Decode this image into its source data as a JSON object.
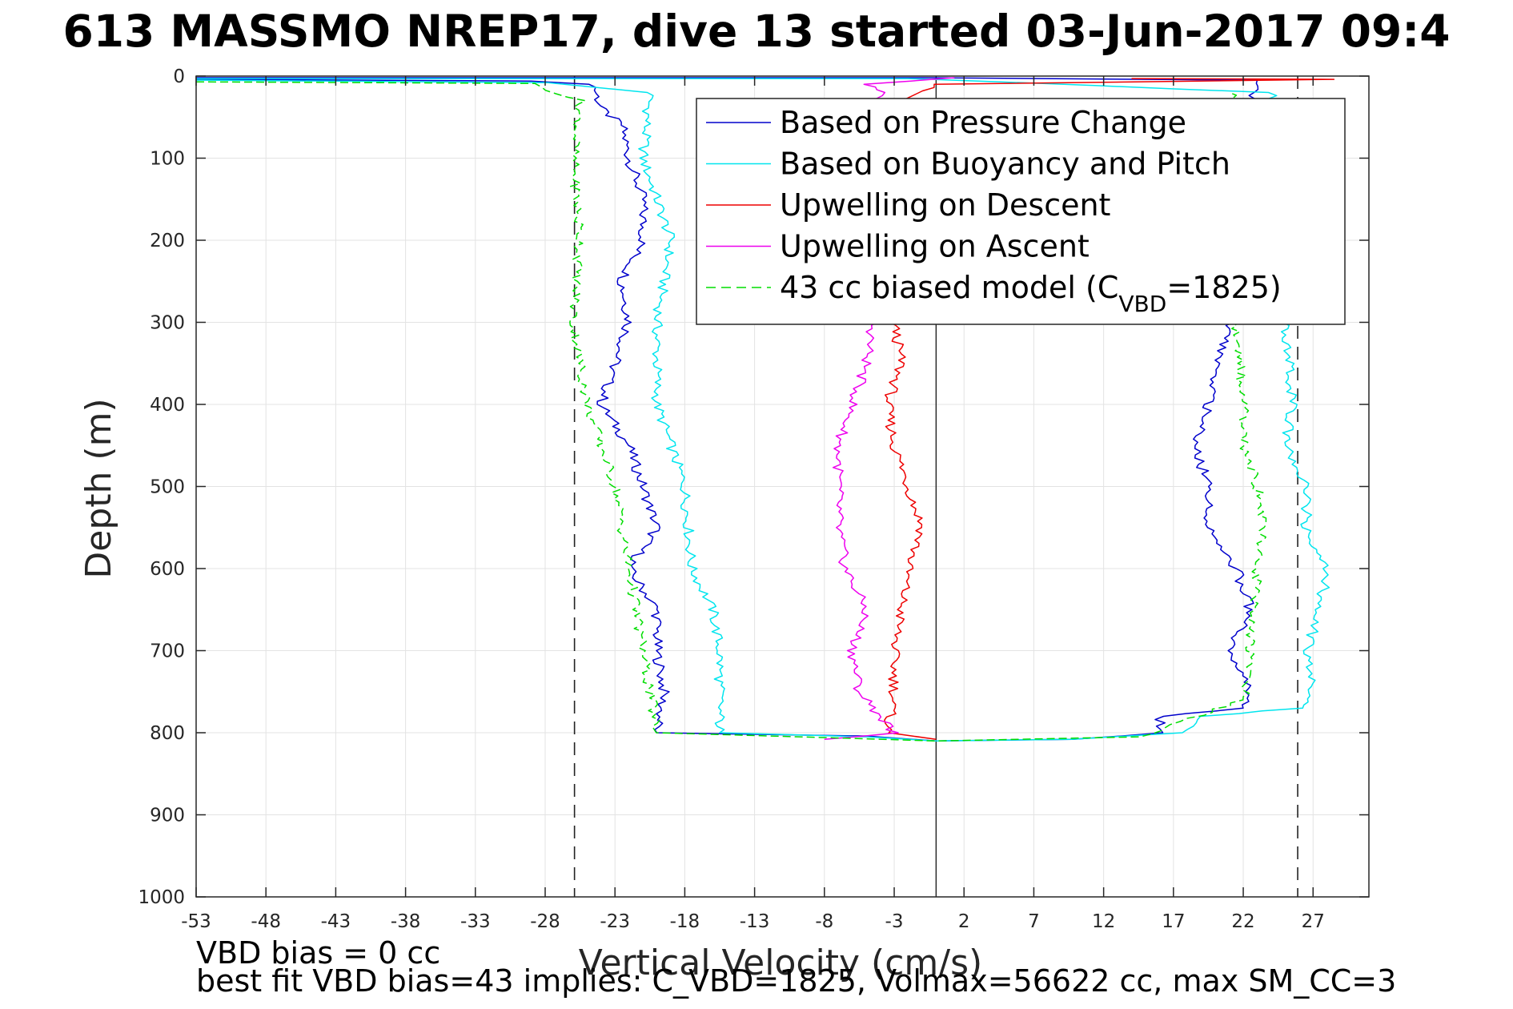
{
  "chart_data": {
    "type": "line",
    "title": "613 MASSMO NREP17, dive 13 started 03-Jun-2017 09:4",
    "xlabel": "Vertical Velocity (cm/s)",
    "ylabel": "Depth (m)",
    "xlim": [
      -53,
      31
    ],
    "ylim": [
      0,
      1000
    ],
    "y_reversed": true,
    "grid": true,
    "xticks": [
      "-53",
      "-48",
      "-43",
      "-38",
      "-33",
      "-28",
      "-23",
      "-18",
      "-13",
      "-8",
      "-3",
      "2",
      "7",
      "12",
      "17",
      "22",
      "27"
    ],
    "yticks": [
      "0",
      "100",
      "200",
      "300",
      "400",
      "500",
      "600",
      "700",
      "800",
      "900",
      "1000"
    ],
    "reference_lines": {
      "dashed_x": [
        -25.9,
        25.9
      ],
      "solid_x": [
        0
      ]
    },
    "legend": {
      "position": "top-right",
      "entries": [
        {
          "label": "Based on Pressure Change",
          "color": "#0000cc",
          "dash": false
        },
        {
          "label": "Based on Buoyancy and Pitch",
          "color": "#00e5ee",
          "dash": false
        },
        {
          "label": "Upwelling on Descent",
          "color": "#ee0000",
          "dash": false
        },
        {
          "label": "Upwelling on Ascent",
          "color": "#ee00ee",
          "dash": false
        },
        {
          "label": "43 cc biased model (C",
          "sub": "VBD",
          "label_end": "=1825)",
          "color": "#00dd00",
          "dash": true
        }
      ]
    },
    "series": [
      {
        "name": "Based on Pressure Change",
        "color": "#0000cc",
        "points": [
          [
            -53,
            4
          ],
          [
            -29,
            6
          ],
          [
            -24.5,
            10
          ],
          [
            -24,
            40
          ],
          [
            -22.5,
            60
          ],
          [
            -22,
            100
          ],
          [
            -21,
            150
          ],
          [
            -21,
            200
          ],
          [
            -22.5,
            250
          ],
          [
            -22,
            300
          ],
          [
            -23,
            350
          ],
          [
            -24,
            400
          ],
          [
            -22,
            450
          ],
          [
            -21,
            500
          ],
          [
            -20,
            550
          ],
          [
            -22,
            600
          ],
          [
            -20,
            650
          ],
          [
            -20,
            700
          ],
          [
            -19.5,
            750
          ],
          [
            -20,
            800
          ],
          [
            -5,
            804
          ],
          [
            0,
            810
          ],
          [
            10,
            808
          ],
          [
            16,
            800
          ],
          [
            16,
            780
          ],
          [
            22,
            770
          ],
          [
            22.5,
            750
          ],
          [
            21,
            700
          ],
          [
            22.5,
            650
          ],
          [
            21.5,
            600
          ],
          [
            19.5,
            550
          ],
          [
            19.5,
            500
          ],
          [
            18.5,
            450
          ],
          [
            19.5,
            400
          ],
          [
            20,
            350
          ],
          [
            21,
            300
          ],
          [
            21.5,
            200
          ],
          [
            22,
            50
          ],
          [
            23,
            5
          ],
          [
            -1,
            2
          ],
          [
            -53,
            2
          ]
        ]
      },
      {
        "name": "Based on Buoyancy and Pitch",
        "color": "#00e5ee",
        "points": [
          [
            -53,
            5
          ],
          [
            -28,
            8
          ],
          [
            -20.5,
            20
          ],
          [
            -21,
            100
          ],
          [
            -19,
            200
          ],
          [
            -20,
            300
          ],
          [
            -20,
            400
          ],
          [
            -19,
            450
          ],
          [
            -18,
            500
          ],
          [
            -17.5,
            600
          ],
          [
            -16,
            650
          ],
          [
            -15.5,
            700
          ],
          [
            -15.5,
            800
          ],
          [
            -5,
            805
          ],
          [
            0,
            810
          ],
          [
            10,
            808
          ],
          [
            18,
            800
          ],
          [
            19,
            780
          ],
          [
            26,
            770
          ],
          [
            27,
            740
          ],
          [
            26.5,
            700
          ],
          [
            27.5,
            650
          ],
          [
            28,
            600
          ],
          [
            26.5,
            550
          ],
          [
            26.5,
            500
          ],
          [
            25,
            450
          ],
          [
            25.5,
            400
          ],
          [
            25,
            300
          ],
          [
            25.5,
            100
          ],
          [
            24,
            20
          ],
          [
            -2,
            3
          ],
          [
            -53,
            3
          ]
        ]
      },
      {
        "name": "Upwelling on Descent",
        "color": "#ee0000",
        "points": [
          [
            14,
            3
          ],
          [
            28.5,
            4
          ],
          [
            0,
            10
          ],
          [
            -1,
            18
          ],
          [
            -2.5,
            30
          ],
          [
            -3,
            300
          ],
          [
            -2.5,
            350
          ],
          [
            -3.5,
            400
          ],
          [
            -3,
            450
          ],
          [
            -2,
            500
          ],
          [
            -1,
            550
          ],
          [
            -2,
            600
          ],
          [
            -2.5,
            650
          ],
          [
            -3,
            700
          ],
          [
            -3,
            750
          ],
          [
            -3.5,
            800
          ],
          [
            0,
            808
          ]
        ]
      },
      {
        "name": "Upwelling on Ascent",
        "color": "#ee00ee",
        "points": [
          [
            1.5,
            2
          ],
          [
            -5,
            10
          ],
          [
            -4,
            20
          ],
          [
            -4.5,
            300
          ],
          [
            -5,
            350
          ],
          [
            -6,
            400
          ],
          [
            -7,
            450
          ],
          [
            -7,
            500
          ],
          [
            -7,
            550
          ],
          [
            -6.5,
            600
          ],
          [
            -5,
            650
          ],
          [
            -6,
            700
          ],
          [
            -5.5,
            750
          ],
          [
            -3,
            800
          ],
          [
            -8,
            808
          ]
        ]
      },
      {
        "name": "43 cc biased model (CVBD=1825)",
        "color": "#00dd00",
        "dash": true,
        "points": [
          [
            -53,
            7
          ],
          [
            -29,
            9
          ],
          [
            -25.5,
            30
          ],
          [
            -26,
            100
          ],
          [
            -25.5,
            200
          ],
          [
            -26,
            300
          ],
          [
            -25,
            400
          ],
          [
            -23,
            500
          ],
          [
            -22,
            600
          ],
          [
            -21,
            700
          ],
          [
            -20,
            800
          ],
          [
            0,
            810
          ],
          [
            15,
            805
          ],
          [
            17,
            790
          ],
          [
            22,
            760
          ],
          [
            22.5,
            700
          ],
          [
            23,
            600
          ],
          [
            23.5,
            550
          ],
          [
            23,
            500
          ],
          [
            22,
            450
          ],
          [
            22,
            400
          ],
          [
            21.5,
            300
          ],
          [
            21,
            100
          ],
          [
            21.5,
            30
          ],
          [
            21,
            20
          ]
        ]
      }
    ]
  },
  "footer": {
    "line1": "VBD bias = 0 cc",
    "line2": "best fit VBD bias=43 implies: C_VBD=1825, Volmax=56622 cc, max SM_CC=3"
  }
}
